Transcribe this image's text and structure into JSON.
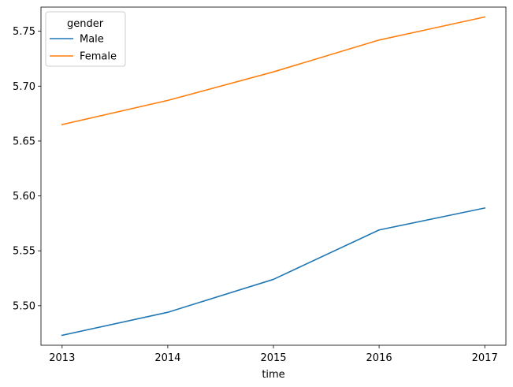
{
  "chart_data": {
    "type": "line",
    "title": "",
    "xlabel": "time",
    "ylabel": "",
    "x": [
      2013,
      2014,
      2015,
      2016,
      2017
    ],
    "x_tick_labels": [
      "2013",
      "2014",
      "2015",
      "2016",
      "2017"
    ],
    "ylim": [
      5.464,
      5.772
    ],
    "y_ticks": [
      5.5,
      5.55,
      5.6,
      5.65,
      5.7,
      5.75
    ],
    "y_tick_labels": [
      "5.50",
      "5.55",
      "5.60",
      "5.65",
      "5.70",
      "5.75"
    ],
    "grid": false,
    "legend": {
      "title": "gender",
      "placement": "top-left"
    },
    "series": [
      {
        "name": "Male",
        "color": "#1f77b4",
        "values": [
          5.473,
          5.494,
          5.524,
          5.569,
          5.589
        ]
      },
      {
        "name": "Female",
        "color": "#ff7f0e",
        "values": [
          5.665,
          5.687,
          5.713,
          5.742,
          5.763
        ]
      }
    ]
  }
}
